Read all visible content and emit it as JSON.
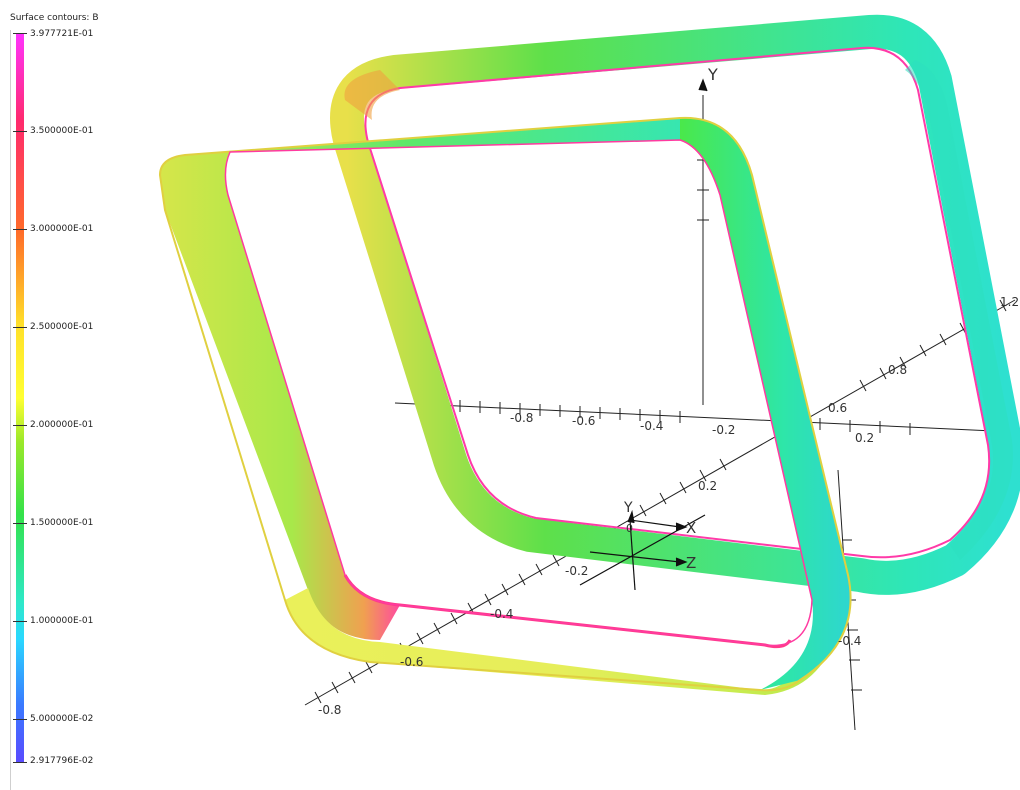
{
  "legend": {
    "title": "Surface contours: B",
    "levels": [
      {
        "label": "3.977721E-01",
        "value": 0.3977721
      },
      {
        "label": "3.500000E-01",
        "value": 0.35
      },
      {
        "label": "3.000000E-01",
        "value": 0.3
      },
      {
        "label": "2.500000E-01",
        "value": 0.25
      },
      {
        "label": "2.000000E-01",
        "value": 0.2
      },
      {
        "label": "1.500000E-01",
        "value": 0.15
      },
      {
        "label": "1.000000E-01",
        "value": 0.1
      },
      {
        "label": "5.000000E-02",
        "value": 0.05
      },
      {
        "label": "2.917796E-02",
        "value": 0.02917796
      }
    ],
    "colors": [
      "#ff33ff",
      "#ff2a6e",
      "#ff6a2a",
      "#ffe02a",
      "#9be82a",
      "#33e24a",
      "#2ee8c8",
      "#2ad8ff",
      "#3a7aff",
      "#5a4aff"
    ]
  },
  "axes": {
    "triad": {
      "x": "X",
      "y": "Y",
      "z": "Z",
      "origin": "0"
    },
    "y_axis_label": "Y",
    "tick_labels": [
      "-0.8",
      "-0.6",
      "-0.4",
      "-0.2",
      "0.2",
      "0.6",
      "0.8",
      "1.2",
      "0.2",
      "-0.4",
      "-0.2",
      "-0.4",
      "-0.6",
      "-0.8"
    ]
  }
}
